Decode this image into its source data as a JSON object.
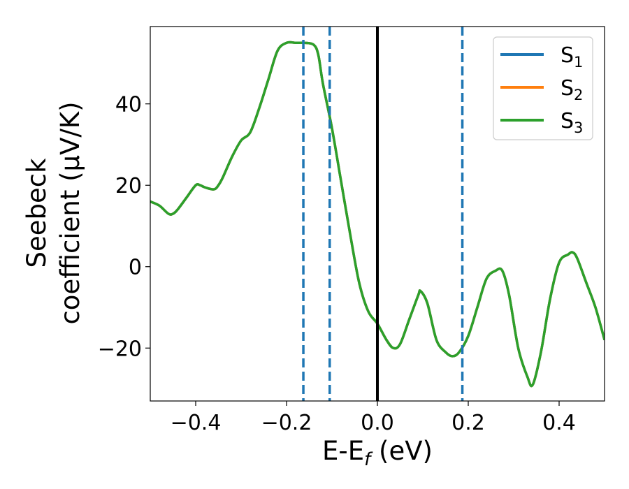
{
  "chart_data": {
    "type": "line",
    "xlabel": "E-E_f (eV)",
    "xlabel_parts": {
      "main": "E-E",
      "sub": "f",
      "tail": " (eV)"
    },
    "ylabel_line1": "Seebeck",
    "ylabel_line2": "coefficient  (μV/K)",
    "xlim": [
      -0.5,
      0.5
    ],
    "ylim": [
      -33,
      59
    ],
    "xticks": [
      -0.4,
      -0.2,
      0.0,
      0.2,
      0.4
    ],
    "xtick_labels": [
      "−0.4",
      "−0.2",
      "0.0",
      "0.2",
      "0.4"
    ],
    "yticks": [
      -20,
      0,
      20,
      40
    ],
    "ytick_labels": [
      "−20",
      "0",
      "20",
      "40"
    ],
    "grid": false,
    "legend_position": "top-right",
    "vlines": [
      {
        "x": -0.163,
        "style": "dashed",
        "color": "#1f77b4"
      },
      {
        "x": -0.105,
        "style": "dashed",
        "color": "#1f77b4"
      },
      {
        "x": 0.0,
        "style": "solid",
        "color": "#000000"
      },
      {
        "x": 0.187,
        "style": "dashed",
        "color": "#1f77b4"
      }
    ],
    "x": [
      -0.5,
      -0.48,
      -0.46,
      -0.45,
      -0.44,
      -0.42,
      -0.4,
      -0.39,
      -0.38,
      -0.36,
      -0.35,
      -0.34,
      -0.32,
      -0.3,
      -0.28,
      -0.26,
      -0.24,
      -0.22,
      -0.2,
      -0.18,
      -0.17,
      -0.16,
      -0.14,
      -0.13,
      -0.12,
      -0.1,
      -0.08,
      -0.06,
      -0.04,
      -0.02,
      0.0,
      0.02,
      0.035,
      0.05,
      0.07,
      0.09,
      0.095,
      0.11,
      0.13,
      0.15,
      0.165,
      0.18,
      0.2,
      0.22,
      0.24,
      0.26,
      0.275,
      0.29,
      0.31,
      0.33,
      0.342,
      0.36,
      0.38,
      0.4,
      0.42,
      0.43,
      0.44,
      0.46,
      0.48,
      0.5
    ],
    "series": [
      {
        "name": "S₁",
        "base": "S",
        "sub": "1",
        "color": "#1f77b4",
        "values": [
          16,
          15,
          13,
          13,
          14,
          17,
          20,
          20,
          19.5,
          19,
          20,
          22,
          27,
          31,
          33,
          39,
          46,
          53,
          55,
          55,
          55,
          55,
          54.5,
          52,
          45,
          34,
          21,
          8,
          -4,
          -11,
          -14,
          -18,
          -20,
          -19,
          -13,
          -7,
          -6,
          -9,
          -18,
          -21,
          -22,
          -21,
          -17,
          -10,
          -3,
          -1,
          -1,
          -7,
          -20,
          -27,
          -29,
          -21,
          -8,
          1,
          3,
          3.5,
          2,
          -4,
          -10,
          -18
        ]
      },
      {
        "name": "S₂",
        "base": "S",
        "sub": "2",
        "color": "#ff7f0e",
        "values": [
          16,
          15,
          13,
          13,
          14,
          17,
          20,
          20,
          19.5,
          19,
          20,
          22,
          27,
          31,
          33,
          39,
          46,
          53,
          55,
          55,
          55,
          55,
          54.5,
          52,
          45,
          34,
          21,
          8,
          -4,
          -11,
          -14,
          -18,
          -20,
          -19,
          -13,
          -7,
          -6,
          -9,
          -18,
          -21,
          -22,
          -21,
          -17,
          -10,
          -3,
          -1,
          -1,
          -7,
          -20,
          -27,
          -29,
          -21,
          -8,
          1,
          3,
          3.5,
          2,
          -4,
          -10,
          -18
        ]
      },
      {
        "name": "S₃",
        "base": "S",
        "sub": "3",
        "color": "#2ca02c",
        "values": [
          16,
          15,
          13,
          13,
          14,
          17,
          20,
          20,
          19.5,
          19,
          20,
          22,
          27,
          31,
          33,
          39,
          46,
          53,
          55,
          55,
          55,
          55,
          54.5,
          52,
          45,
          34,
          21,
          8,
          -4,
          -11,
          -14,
          -18,
          -20,
          -19,
          -13,
          -7,
          -6,
          -9,
          -18,
          -21,
          -22,
          -21,
          -17,
          -10,
          -3,
          -1,
          -1,
          -7,
          -20,
          -27,
          -29,
          -21,
          -8,
          1,
          3,
          3.5,
          2,
          -4,
          -10,
          -18
        ]
      }
    ]
  }
}
